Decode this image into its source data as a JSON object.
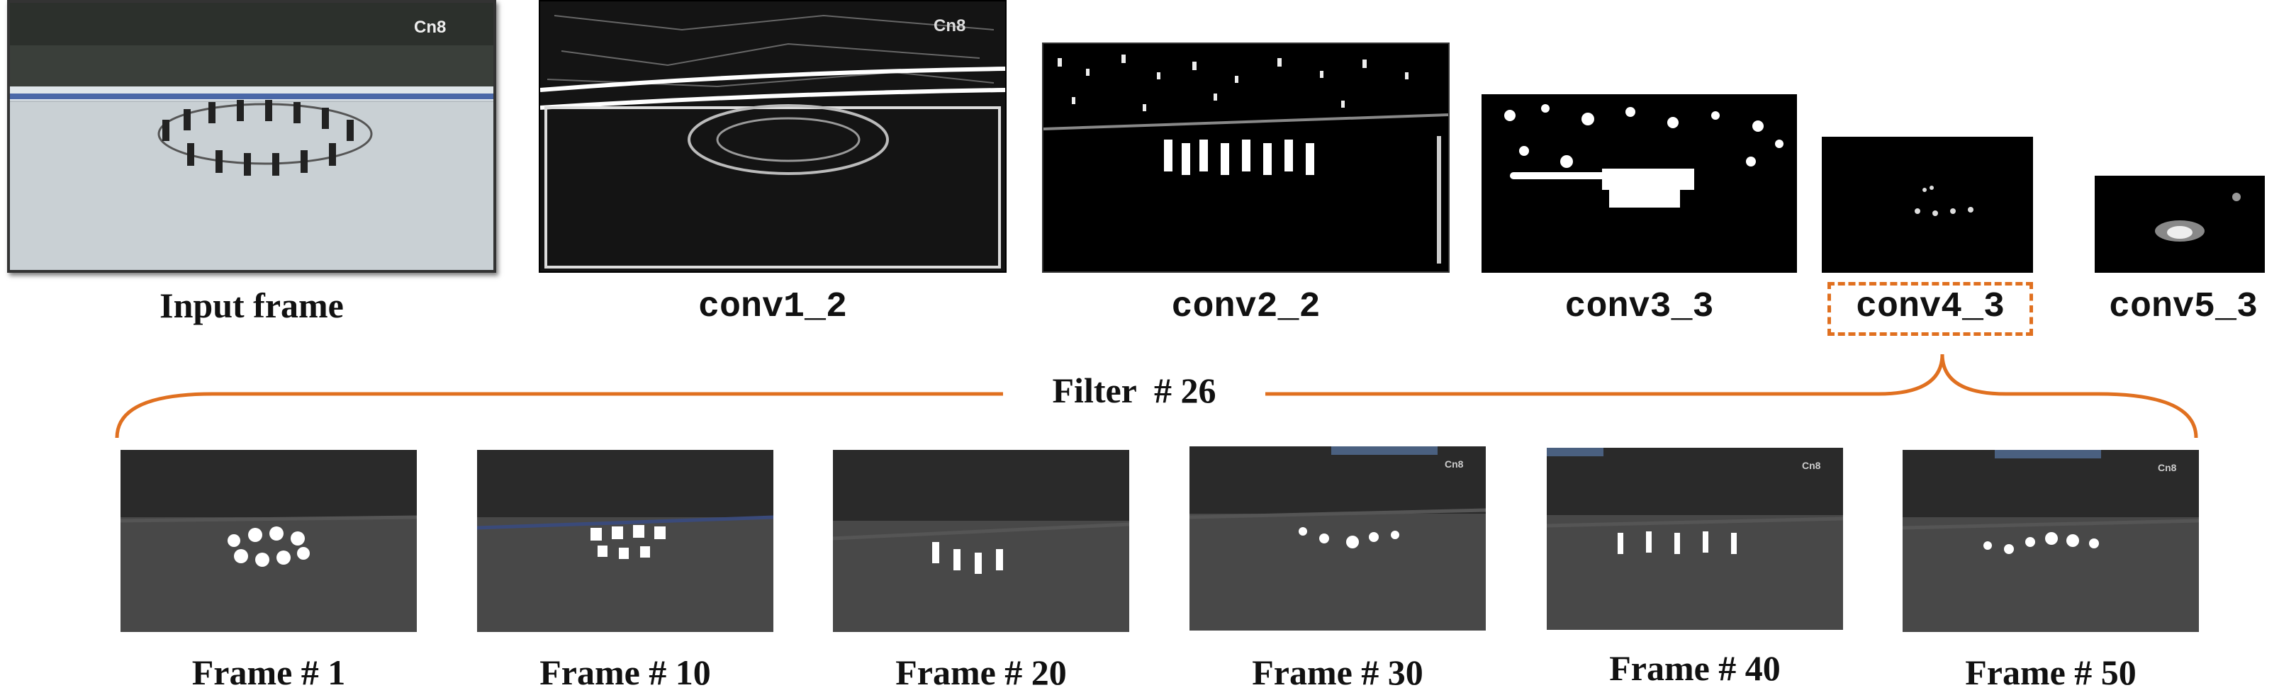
{
  "top_row": {
    "input_label": "Input frame",
    "layers": [
      "conv1_2",
      "conv2_2",
      "conv3_3",
      "conv4_3",
      "conv5_3"
    ],
    "watermark": "Cn8"
  },
  "brace": {
    "label": "Filter  # 26",
    "color": "#e07020"
  },
  "bottom_row": {
    "frames": [
      "Frame # 1",
      "Frame # 10",
      "Frame # 20",
      "Frame # 30",
      "Frame # 40",
      "Frame # 50"
    ]
  }
}
